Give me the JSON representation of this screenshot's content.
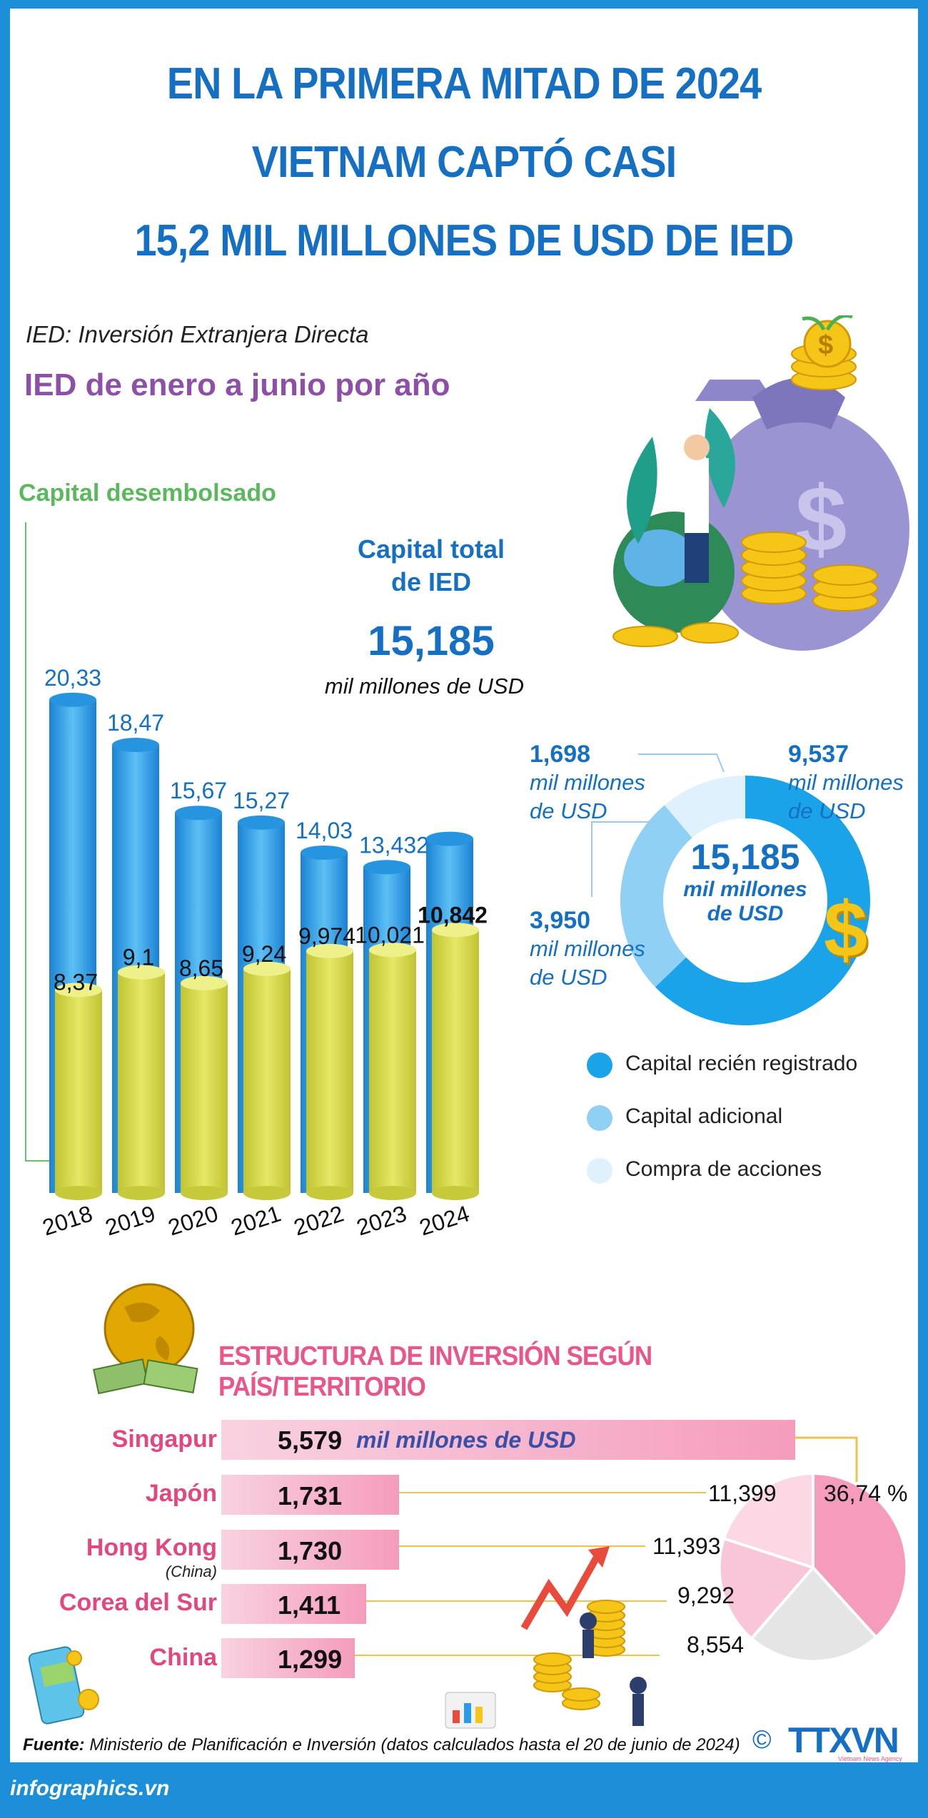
{
  "title": {
    "line1": "EN LA PRIMERA MITAD DE 2024",
    "line2": "VIETNAM CAPTÓ CASI",
    "line3": "15,2 MIL MILLONES DE USD DE IED"
  },
  "definition": "IED: Inversión Extranjera Directa",
  "section1_title": "IED de enero a junio por año",
  "disbursed_label": "Capital desembolsado",
  "total": {
    "label_line1": "Capital total",
    "label_line2": "de IED",
    "value": "15,185",
    "unit": "mil millones de USD"
  },
  "donut": {
    "center_value": "15,185",
    "center_unit_line1": "mil millones",
    "center_unit_line2": "de USD",
    "annotations": [
      {
        "value": "9,537",
        "unit_line1": "mil millones",
        "unit_line2": "de  USD"
      },
      {
        "value": "1,698",
        "unit_line1": "mil millones",
        "unit_line2": "de USD"
      },
      {
        "value": "3,950",
        "unit_line1": "mil millones",
        "unit_line2": "de USD"
      }
    ]
  },
  "legend": [
    {
      "label": "Capital recién registrado",
      "color": "#1aa3e8"
    },
    {
      "label": "Capital adicional",
      "color": "#8fd0f4"
    },
    {
      "label": "Compra de acciones",
      "color": "#dff1fc"
    }
  ],
  "section2_title": "ESTRUCTURA DE INVERSIÓN SEGÚN PAÍS/TERRITORIO",
  "countries_unit": "mil millones de USD",
  "countries": [
    {
      "name": "Singapur",
      "sub": "",
      "value": "5,579"
    },
    {
      "name": "Japón",
      "sub": "",
      "value": "1,731"
    },
    {
      "name": "Hong Kong",
      "sub": "(China)",
      "value": "1,730"
    },
    {
      "name": "Corea del Sur",
      "sub": "",
      "value": "1,411"
    },
    {
      "name": "China",
      "sub": "",
      "value": "1,299"
    }
  ],
  "pie": {
    "percent_label": "36,74 %",
    "values": [
      "11,399",
      "11,393",
      "9,292",
      "8,554"
    ]
  },
  "footer": {
    "source_label": "Fuente:",
    "source_text": "Ministerio de Planificación e Inversión (datos calculados hasta el 20 de junio de 2024)",
    "site": "infographics.vn",
    "copyright": "©",
    "agency": "TTXVN",
    "agency_sub": "Vietnam News Agency"
  },
  "chart_data": [
    {
      "type": "bar",
      "categories": [
        "2018",
        "2019",
        "2020",
        "2021",
        "2022",
        "2023",
        "2024"
      ],
      "series": [
        {
          "name": "",
          "values": [
            20.33,
            18.47,
            15.67,
            15.27,
            14.03,
            13.432,
            null
          ],
          "labels": [
            "20,33",
            "18,47",
            "15,67",
            "15,27",
            "14,03",
            "13,432",
            ""
          ]
        },
        {
          "name": "Capital desembolsado",
          "values": [
            8.37,
            9.1,
            8.65,
            9.24,
            9.974,
            10.021,
            10.842
          ],
          "labels": [
            "8,37",
            "9,1",
            "8,65",
            "9,24",
            "9,974",
            "10,021",
            "10,842"
          ]
        }
      ],
      "colors": [
        "#2a9be4",
        "#d4d94a"
      ]
    },
    {
      "type": "pie",
      "values": [
        9.537,
        3.95,
        1.698
      ],
      "labels": [
        "9,537",
        "3,950",
        "1,698"
      ],
      "colors": [
        "#1aa3e8",
        "#8fd0f4",
        "#dff1fc"
      ]
    },
    {
      "type": "bar",
      "categories": [
        "Singapur",
        "Japón",
        "Hong Kong (China)",
        "Corea del Sur",
        "China"
      ],
      "values": [
        5.579,
        1.731,
        1.73,
        1.411,
        1.299
      ]
    }
  ]
}
